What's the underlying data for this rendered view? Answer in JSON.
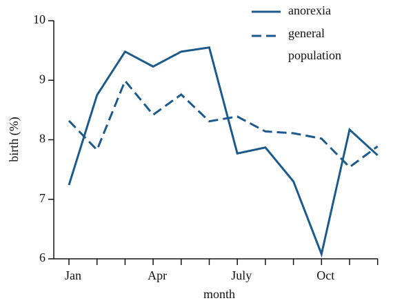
{
  "chart_data": {
    "type": "line",
    "x_label": "month",
    "y_label": "birth (%)",
    "categories": [
      "Jan",
      null,
      null,
      "Apr",
      null,
      null,
      "July",
      null,
      null,
      "Oct",
      null,
      null
    ],
    "series": [
      {
        "name": "anorexia",
        "color": "#1c5a8d",
        "dash": "solid",
        "values": [
          7.24,
          8.75,
          9.48,
          9.23,
          9.48,
          9.55,
          7.77,
          7.87,
          7.3,
          6.08,
          8.17,
          7.74
        ]
      },
      {
        "name": "general population",
        "color": "#1c5a8d",
        "dash": "dashed",
        "values": [
          8.32,
          7.83,
          8.99,
          8.42,
          8.76,
          8.31,
          8.39,
          8.14,
          8.11,
          8.02,
          7.54,
          7.89
        ]
      }
    ],
    "ylim": [
      6,
      10
    ],
    "yticks": [
      6,
      7,
      8,
      9,
      10
    ],
    "legend": "top-right"
  }
}
